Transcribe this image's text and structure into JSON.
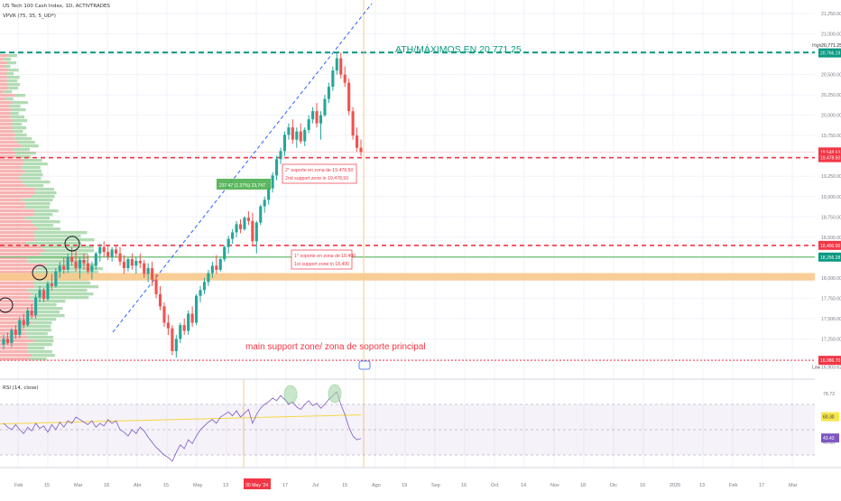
{
  "header": {
    "symbol_line": "US Tech 100 Cash Index, 1D, ACTIVTRADES",
    "indicator_line": "VPVR (75, 35, 5_UD*)",
    "rsi_line": "RSI (14, close)"
  },
  "price_axis": {
    "ticks": [
      "21,250.00",
      "21,000.00",
      "20,771.25",
      "20,500.00",
      "20,250.00",
      "20,000.00",
      "19,750.00",
      "19,500.00",
      "19,250.00",
      "19,000.00",
      "18,750.00",
      "18,500.00",
      "18,250.00",
      "18,000.00",
      "17,750.00",
      "17,500.00",
      "17,250.00",
      "16,903.62"
    ],
    "badges": [
      {
        "text": "20,766.19",
        "color": "#089981"
      },
      {
        "text": "19,548.63",
        "color": "#f23645"
      },
      {
        "text": "19,478.50",
        "color": "#f23645"
      },
      {
        "text": "18,400.00",
        "color": "#f23645"
      },
      {
        "text": "18,256.28",
        "color": "#089981"
      },
      {
        "text": "16,986.70",
        "color": "#f23645"
      }
    ],
    "high_label": "High",
    "low_label": "Low"
  },
  "rsi_axis": {
    "ticks": [
      "78.72",
      "60.00",
      "40.00"
    ],
    "badges": [
      {
        "text": "60.30",
        "color": "#f6e64c",
        "text_color": "#333"
      },
      {
        "text": "43.43",
        "color": "#7e57c2",
        "text_color": "#fff"
      }
    ]
  },
  "time_axis": {
    "labels": [
      "Feb",
      "15",
      "Mar",
      "18",
      "Abr",
      "15",
      "May",
      "13",
      "30 May '24",
      "17",
      "Jul",
      "15",
      "Ago",
      "19",
      "Sep",
      "16",
      "Oct",
      "14",
      "Nov",
      "18",
      "Dic",
      "16",
      "2025",
      "13",
      "Feb",
      "17",
      "Mar"
    ],
    "highlight": "30 May '24"
  },
  "annotations": {
    "ath": "ATH/MÁXIMOS EN 20.771,25",
    "second_support_es": "2° soporte en zona de 19.478,50",
    "second_support_en": "2nd support zone in 19,478,50",
    "first_support_es": "1° soporte en zona de 18.400",
    "first_support_en": "1st support zone in 18,400",
    "main_support": "main support zone/ zona de soporte principal",
    "measure": "237.47 (1.37%) 23,747"
  },
  "colors": {
    "up": "#26a69a",
    "down": "#ef5350",
    "ath_line": "#089981",
    "support_line": "#f23645",
    "orange_zone": "#f7c98b",
    "rsi_line": "#7e57c2",
    "rsi_ma": "#f5d742",
    "trend_line": "#2962ff"
  },
  "chart_data": {
    "type": "candlestick",
    "title": "US Tech 100 Cash Index, 1D, ACTIVTRADES",
    "ylim": [
      16800,
      21350
    ],
    "levels": {
      "ath": 20771.25,
      "support2": 19478.5,
      "support1": 18400,
      "main_support": 16986.7,
      "green_line": 18256.28,
      "orange_zone": [
        17990,
        18060
      ]
    },
    "candles": [
      [
        17180,
        17300,
        17120,
        17250
      ],
      [
        17250,
        17330,
        17180,
        17200
      ],
      [
        17200,
        17380,
        17150,
        17360
      ],
      [
        17360,
        17420,
        17250,
        17300
      ],
      [
        17300,
        17520,
        17260,
        17480
      ],
      [
        17480,
        17560,
        17380,
        17420
      ],
      [
        17420,
        17640,
        17400,
        17600
      ],
      [
        17600,
        17680,
        17500,
        17540
      ],
      [
        17540,
        17800,
        17500,
        17760
      ],
      [
        17760,
        17900,
        17700,
        17850
      ],
      [
        17850,
        17880,
        17700,
        17740
      ],
      [
        17740,
        17960,
        17720,
        17930
      ],
      [
        17930,
        18050,
        17850,
        17900
      ],
      [
        17900,
        18120,
        17880,
        18080
      ],
      [
        18080,
        18200,
        18000,
        18150
      ],
      [
        18150,
        18250,
        18050,
        18100
      ],
      [
        18100,
        18300,
        18060,
        18260
      ],
      [
        18260,
        18380,
        18150,
        18200
      ],
      [
        18200,
        18330,
        18080,
        18120
      ],
      [
        18120,
        18250,
        17990,
        18220
      ],
      [
        18220,
        18300,
        18100,
        18180
      ],
      [
        18180,
        18280,
        18050,
        18080
      ],
      [
        18080,
        18200,
        17980,
        18150
      ],
      [
        18150,
        18320,
        18100,
        18300
      ],
      [
        18300,
        18420,
        18200,
        18380
      ],
      [
        18380,
        18450,
        18260,
        18320
      ],
      [
        18320,
        18400,
        18220,
        18260
      ],
      [
        18260,
        18380,
        18200,
        18350
      ],
      [
        18350,
        18400,
        18250,
        18300
      ],
      [
        18300,
        18380,
        18150,
        18200
      ],
      [
        18200,
        18280,
        18050,
        18120
      ],
      [
        18120,
        18250,
        18080,
        18230
      ],
      [
        18230,
        18300,
        18100,
        18150
      ],
      [
        18150,
        18260,
        18050,
        18210
      ],
      [
        18210,
        18300,
        18120,
        18180
      ],
      [
        18180,
        18220,
        18000,
        18050
      ],
      [
        18050,
        18180,
        17950,
        18120
      ],
      [
        18120,
        18200,
        17900,
        17980
      ],
      [
        17980,
        18050,
        17750,
        17800
      ],
      [
        17800,
        17900,
        17600,
        17650
      ],
      [
        17650,
        17700,
        17400,
        17450
      ],
      [
        17450,
        17550,
        17300,
        17380
      ],
      [
        17380,
        17420,
        17050,
        17100
      ],
      [
        17100,
        17300,
        17020,
        17250
      ],
      [
        17250,
        17450,
        17200,
        17420
      ],
      [
        17420,
        17500,
        17300,
        17350
      ],
      [
        17350,
        17600,
        17300,
        17560
      ],
      [
        17560,
        17650,
        17400,
        17450
      ],
      [
        17450,
        17800,
        17420,
        17780
      ],
      [
        17780,
        17900,
        17700,
        17850
      ],
      [
        17850,
        18000,
        17800,
        17950
      ],
      [
        17950,
        18100,
        17900,
        18060
      ],
      [
        18060,
        18200,
        18000,
        18150
      ],
      [
        18150,
        18280,
        18050,
        18100
      ],
      [
        18100,
        18250,
        18080,
        18230
      ],
      [
        18230,
        18400,
        18200,
        18380
      ],
      [
        18380,
        18520,
        18300,
        18480
      ],
      [
        18480,
        18600,
        18420,
        18560
      ],
      [
        18560,
        18700,
        18500,
        18660
      ],
      [
        18660,
        18720,
        18550,
        18600
      ],
      [
        18600,
        18760,
        18580,
        18740
      ],
      [
        18740,
        18820,
        18650,
        18700
      ],
      [
        18700,
        18800,
        18400,
        18450
      ],
      [
        18450,
        18700,
        18300,
        18680
      ],
      [
        18680,
        18900,
        18650,
        18880
      ],
      [
        18880,
        19000,
        18800,
        18960
      ],
      [
        18960,
        19150,
        18900,
        19100
      ],
      [
        19100,
        19300,
        19050,
        19260
      ],
      [
        19260,
        19500,
        19200,
        19460
      ],
      [
        19460,
        19600,
        19400,
        19560
      ],
      [
        19560,
        19800,
        19500,
        19760
      ],
      [
        19760,
        19900,
        19700,
        19850
      ],
      [
        19850,
        19950,
        19650,
        19700
      ],
      [
        19700,
        19850,
        19600,
        19800
      ],
      [
        19800,
        19900,
        19650,
        19680
      ],
      [
        19680,
        19850,
        19620,
        19820
      ],
      [
        19820,
        20000,
        19780,
        19950
      ],
      [
        19950,
        20100,
        19900,
        20050
      ],
      [
        20050,
        20150,
        19850,
        19900
      ],
      [
        19900,
        20050,
        19700,
        20000
      ],
      [
        20000,
        20250,
        19980,
        20200
      ],
      [
        20200,
        20400,
        20150,
        20350
      ],
      [
        20350,
        20600,
        20300,
        20550
      ],
      [
        20550,
        20771,
        20500,
        20700
      ],
      [
        20700,
        20771,
        20450,
        20500
      ],
      [
        20500,
        20600,
        20350,
        20400
      ],
      [
        20400,
        20450,
        20000,
        20050
      ],
      [
        20050,
        20100,
        19700,
        19750
      ],
      [
        19750,
        19850,
        19550,
        19600
      ],
      [
        19600,
        19700,
        19500,
        19548
      ]
    ],
    "rsi": {
      "ylim": [
        20,
        90
      ],
      "levels": [
        70,
        50,
        30
      ],
      "ma": 60.3,
      "last": 43.43,
      "values": [
        55,
        52,
        50,
        54,
        50,
        47,
        52,
        49,
        55,
        51,
        53,
        48,
        54,
        50,
        56,
        52,
        57,
        55,
        60,
        58,
        56,
        54,
        57,
        52,
        55,
        53,
        58,
        55,
        57,
        50,
        48,
        45,
        50,
        47,
        52,
        49,
        44,
        40,
        36,
        33,
        30,
        28,
        25,
        32,
        38,
        35,
        42,
        39,
        45,
        50,
        53,
        56,
        58,
        55,
        60,
        62,
        64,
        61,
        65,
        60,
        63,
        66,
        55,
        62,
        67,
        70,
        72,
        75,
        73,
        77,
        74,
        70,
        72,
        68,
        66,
        70,
        73,
        69,
        71,
        67,
        70,
        74,
        77,
        80,
        70,
        62,
        52,
        45,
        42,
        43
      ]
    }
  }
}
